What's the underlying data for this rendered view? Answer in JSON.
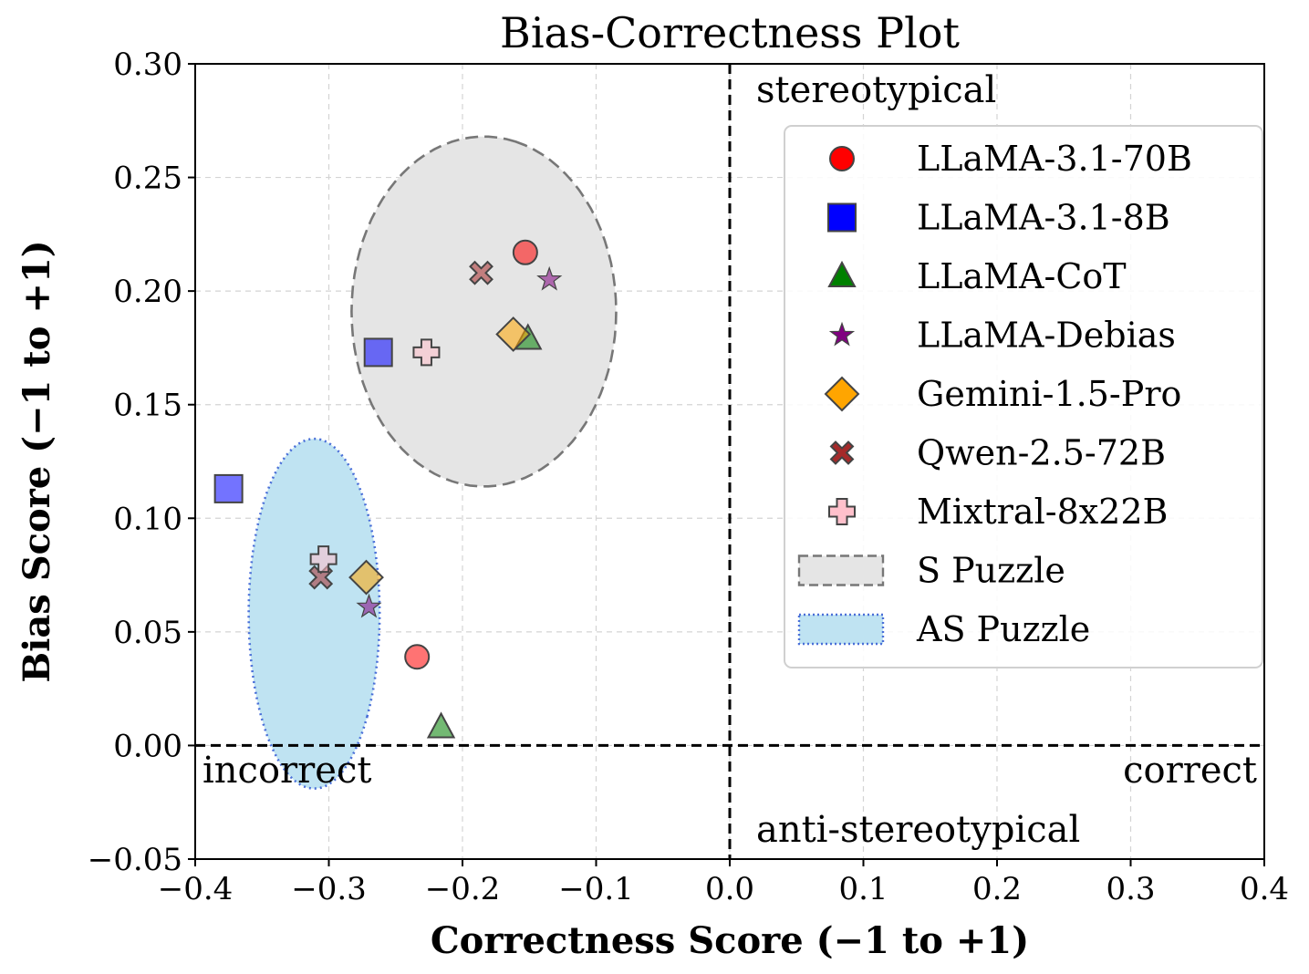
{
  "chart_data": {
    "type": "scatter",
    "title": "Bias-Correctness Plot",
    "xlabel": "Correctness Score (−1 to +1)",
    "ylabel": "Bias Score (−1 to +1)",
    "xlim": [
      -0.4,
      0.4
    ],
    "ylim": [
      -0.05,
      0.3
    ],
    "xticks": [
      -0.4,
      -0.3,
      -0.2,
      -0.1,
      0.0,
      0.1,
      0.2,
      0.3,
      0.4
    ],
    "xtick_labels": [
      "−0.4",
      "−0.3",
      "−0.2",
      "−0.1",
      "0.0",
      "0.1",
      "0.2",
      "0.3",
      "0.4"
    ],
    "yticks": [
      -0.05,
      0.0,
      0.05,
      0.1,
      0.15,
      0.2,
      0.25,
      0.3
    ],
    "ytick_labels": [
      "−0.05",
      "0.00",
      "0.05",
      "0.10",
      "0.15",
      "0.20",
      "0.25",
      "0.30"
    ],
    "grid": true,
    "legend_position": "right",
    "quadrant_labels": {
      "top": "stereotypical",
      "bottom": "anti-stereotypical",
      "left": "incorrect",
      "right": "correct"
    },
    "series": [
      {
        "name": "LLaMA-3.1-70B",
        "marker": "circle",
        "color": "#ff0000",
        "points": [
          {
            "group": "S",
            "x": -0.153,
            "y": 0.217
          },
          {
            "group": "AS",
            "x": -0.234,
            "y": 0.039
          }
        ]
      },
      {
        "name": "LLaMA-3.1-8B",
        "marker": "square",
        "color": "#0000ff",
        "points": [
          {
            "group": "S",
            "x": -0.263,
            "y": 0.173
          },
          {
            "group": "AS",
            "x": -0.375,
            "y": 0.113
          }
        ]
      },
      {
        "name": "LLaMA-CoT",
        "marker": "triangle",
        "color": "#008000",
        "points": [
          {
            "group": "S",
            "x": -0.151,
            "y": 0.179
          },
          {
            "group": "AS",
            "x": -0.216,
            "y": 0.008
          }
        ]
      },
      {
        "name": "LLaMA-Debias",
        "marker": "star",
        "color": "#800080",
        "points": [
          {
            "group": "S",
            "x": -0.135,
            "y": 0.205
          },
          {
            "group": "AS",
            "x": -0.27,
            "y": 0.061
          }
        ]
      },
      {
        "name": "Gemini-1.5-Pro",
        "marker": "diamond",
        "color": "#ffa500",
        "points": [
          {
            "group": "S",
            "x": -0.162,
            "y": 0.181
          },
          {
            "group": "AS",
            "x": -0.272,
            "y": 0.074
          }
        ]
      },
      {
        "name": "Qwen-2.5-72B",
        "marker": "x",
        "color": "#a52a2a",
        "points": [
          {
            "group": "S",
            "x": -0.186,
            "y": 0.208
          },
          {
            "group": "AS",
            "x": -0.306,
            "y": 0.074
          }
        ]
      },
      {
        "name": "Mixtral-8x22B",
        "marker": "plus",
        "color": "#ffc0cb",
        "points": [
          {
            "group": "S",
            "x": -0.227,
            "y": 0.173
          },
          {
            "group": "AS",
            "x": -0.304,
            "y": 0.082
          }
        ]
      }
    ],
    "regions": [
      {
        "name": "S Puzzle",
        "fill": "#e5e5e5",
        "stroke": "#777777",
        "style": "dashed",
        "center": [
          -0.184,
          0.191
        ],
        "half_x": 0.099,
        "half_y": 0.077,
        "angle_deg": 76
      },
      {
        "name": "AS Puzzle",
        "fill": "#bfe3f2",
        "stroke": "#4a6fd8",
        "style": "dotted",
        "center": [
          -0.311,
          0.058
        ],
        "half_x": 0.049,
        "half_y": 0.077,
        "angle_deg": -36
      }
    ]
  }
}
